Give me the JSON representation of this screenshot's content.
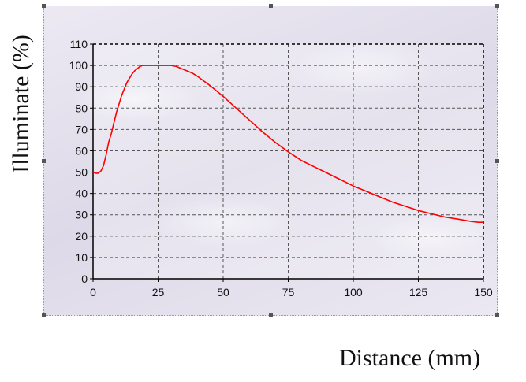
{
  "chart_data": {
    "type": "line",
    "title": "",
    "xlabel": "Distance (mm)",
    "ylabel": "Illuminate (%)",
    "xlim": [
      0,
      150
    ],
    "ylim": [
      0,
      110
    ],
    "xticks": [
      0,
      25,
      50,
      75,
      100,
      125,
      150
    ],
    "yticks": [
      0,
      10,
      20,
      30,
      40,
      50,
      60,
      70,
      80,
      90,
      100,
      110
    ],
    "grid": true,
    "series": [
      {
        "color": "#ff0000",
        "x": [
          0,
          1,
          2,
          3,
          4,
          5,
          6,
          7,
          8,
          9,
          10,
          11,
          12,
          13,
          14,
          15,
          16,
          17,
          18,
          19,
          20,
          22,
          25,
          28,
          30,
          32,
          35,
          38,
          40,
          45,
          50,
          55,
          60,
          65,
          70,
          75,
          80,
          85,
          90,
          95,
          100,
          105,
          110,
          115,
          120,
          125,
          130,
          135,
          140,
          145,
          148,
          150
        ],
        "y": [
          50,
          49.5,
          49.5,
          50.5,
          53,
          58,
          64,
          68,
          73,
          78,
          82,
          86,
          89,
          92,
          94,
          96,
          97.5,
          98.5,
          99.5,
          100,
          100,
          100,
          100,
          100,
          100,
          99.5,
          98,
          96.5,
          95,
          90.5,
          85.5,
          80,
          74.5,
          69,
          64,
          59.5,
          55.5,
          52.5,
          49.5,
          46.5,
          43.5,
          41,
          38.5,
          36,
          34,
          32,
          30.5,
          29,
          28,
          27,
          26.5,
          26.5
        ]
      }
    ]
  }
}
